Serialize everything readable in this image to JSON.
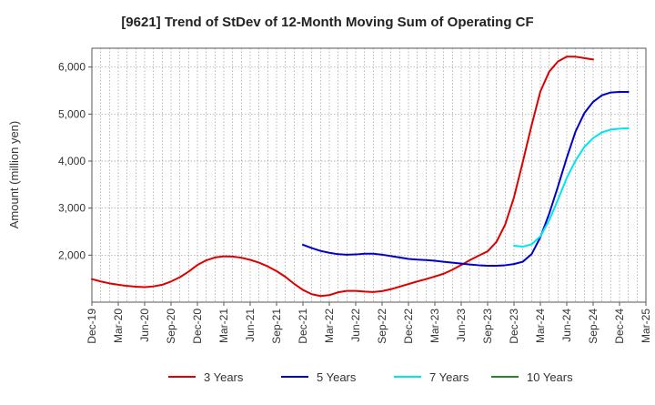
{
  "chart_data": {
    "type": "line",
    "title": "[9621]  Trend of StDev of 12-Month Moving Sum of Operating CF",
    "xlabel": "",
    "ylabel": "Amount (million yen)",
    "x_tick_labels": [
      "Dec-19",
      "Mar-20",
      "Jun-20",
      "Sep-20",
      "Dec-20",
      "Mar-21",
      "Jun-21",
      "Sep-21",
      "Dec-21",
      "Mar-22",
      "Jun-22",
      "Sep-22",
      "Dec-22",
      "Mar-23",
      "Jun-23",
      "Sep-23",
      "Dec-23",
      "Mar-24",
      "Jun-24",
      "Sep-24",
      "Dec-24",
      "Mar-25"
    ],
    "y_ticks": [
      2000,
      3000,
      4000,
      5000,
      6000
    ],
    "y_tick_labels": [
      "2,000",
      "3,000",
      "4,000",
      "5,000",
      "6,000"
    ],
    "ylim": [
      1000,
      6400
    ],
    "grid": true,
    "legend_position": "bottom",
    "series": [
      {
        "name": "3 Years",
        "color": "#dd0000",
        "start_index": 0,
        "values": [
          1490,
          1440,
          1400,
          1370,
          1345,
          1330,
          1320,
          1335,
          1370,
          1440,
          1530,
          1650,
          1790,
          1890,
          1950,
          1975,
          1970,
          1945,
          1900,
          1840,
          1760,
          1660,
          1540,
          1390,
          1260,
          1170,
          1130,
          1150,
          1210,
          1240,
          1240,
          1225,
          1215,
          1235,
          1275,
          1330,
          1385,
          1440,
          1490,
          1545,
          1605,
          1690,
          1790,
          1895,
          1990,
          2080,
          2280,
          2650,
          3230,
          3980,
          4760,
          5480,
          5900,
          6120,
          6220,
          6220,
          6190,
          6160
        ]
      },
      {
        "name": "5 Years",
        "color": "#0000cc",
        "start_index": 24,
        "values": [
          2220,
          2150,
          2090,
          2050,
          2020,
          2010,
          2015,
          2030,
          2030,
          2010,
          1980,
          1950,
          1920,
          1905,
          1895,
          1880,
          1860,
          1840,
          1820,
          1800,
          1785,
          1775,
          1775,
          1785,
          1810,
          1860,
          2020,
          2380,
          2880,
          3460,
          4070,
          4630,
          5020,
          5260,
          5400,
          5460,
          5470,
          5470
        ]
      },
      {
        "name": "7 Years",
        "color": "#00e5ee",
        "start_index": 48,
        "values": [
          2200,
          2180,
          2230,
          2400,
          2740,
          3180,
          3640,
          4010,
          4300,
          4490,
          4610,
          4670,
          4690,
          4700
        ]
      },
      {
        "name": "10 Years",
        "color": "#228822",
        "start_index": 0,
        "values": []
      }
    ]
  }
}
